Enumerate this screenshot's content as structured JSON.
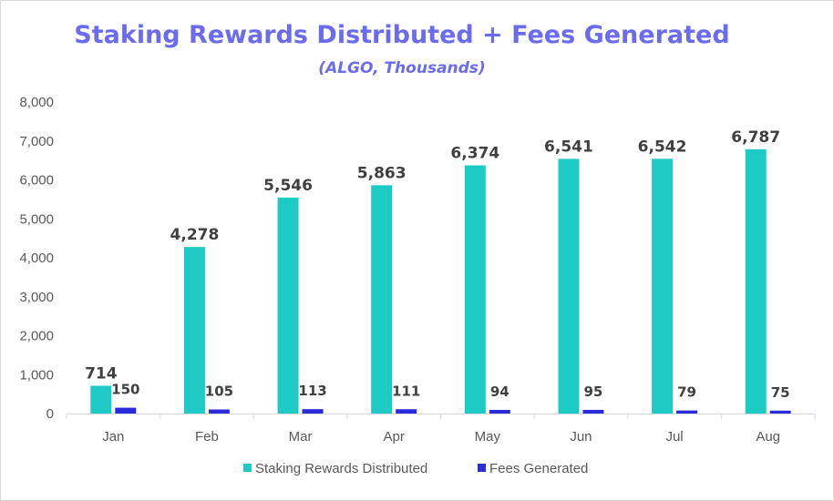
{
  "chart_data": {
    "type": "bar",
    "title": "Staking Rewards Distributed + Fees Generated",
    "subtitle": "(ALGO, Thousands)",
    "xlabel": "",
    "ylabel": "",
    "categories": [
      "Jan",
      "Feb",
      "Mar",
      "Apr",
      "May",
      "Jun",
      "Jul",
      "Aug"
    ],
    "series": [
      {
        "name": "Staking Rewards Distributed",
        "color": "#1ecbc4",
        "values": [
          714,
          4278,
          5546,
          5863,
          6374,
          6541,
          6542,
          6787
        ],
        "labels": [
          "714",
          "4,278",
          "5,546",
          "5,863",
          "6,374",
          "6,541",
          "6,542",
          "6,787"
        ]
      },
      {
        "name": "Fees Generated",
        "color": "#2b2bdb",
        "values": [
          150,
          105,
          113,
          111,
          94,
          95,
          79,
          75
        ],
        "labels": [
          "150",
          "105",
          "113",
          "111",
          "94",
          "95",
          "79",
          "75"
        ]
      }
    ],
    "ylim": [
      0,
      8000
    ],
    "yticks": [
      0,
      1000,
      2000,
      3000,
      4000,
      5000,
      6000,
      7000,
      8000
    ],
    "ytick_labels": [
      "0",
      "1,000",
      "2,000",
      "3,000",
      "4,000",
      "5,000",
      "6,000",
      "7,000",
      "8,000"
    ],
    "grid": false,
    "legend_position": "bottom"
  }
}
